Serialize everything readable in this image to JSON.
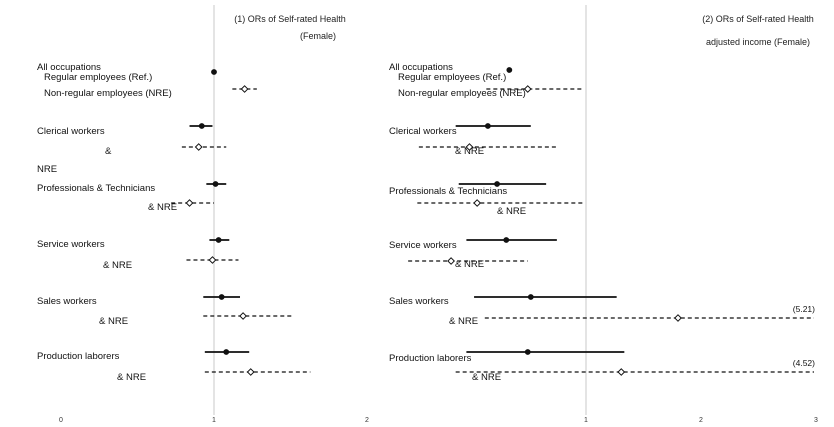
{
  "chart_data": [
    {
      "type": "forest",
      "title_lines": [
        "(1) ORs of Self-rated Health",
        "(Female)"
      ],
      "xlim": [
        0,
        2
      ],
      "x_ticks": [
        "0",
        "1",
        "2"
      ],
      "reference_line": 1,
      "labels": [
        {
          "text": "All occupations"
        },
        {
          "text": "Regular employees (Ref.)"
        },
        {
          "text": "Non-regular employees (NRE)"
        },
        {
          "text": "Clerical workers"
        },
        {
          "text": "&"
        },
        {
          "text": "NRE"
        },
        {
          "text": "Professionals & Technicians"
        },
        {
          "text": "& NRE"
        },
        {
          "text": "Service workers"
        },
        {
          "text": "& NRE"
        },
        {
          "text": "Sales workers"
        },
        {
          "text": "& NRE"
        },
        {
          "text": "Production laborers"
        },
        {
          "text": "& NRE"
        }
      ],
      "estimates": [
        {
          "label": "Regular employees (Ref.)",
          "or": 1.0,
          "ci": [
            1.0,
            1.0
          ],
          "marker": "filled"
        },
        {
          "label": "Non-regular employees (NRE)",
          "or": 1.2,
          "ci": [
            1.12,
            1.28
          ],
          "marker": "open"
        },
        {
          "label": "Clerical workers",
          "or": 0.92,
          "ci": [
            0.84,
            0.99
          ],
          "marker": "filled"
        },
        {
          "label": "Clerical workers & NRE",
          "or": 0.9,
          "ci": [
            0.79,
            1.08
          ],
          "marker": "open"
        },
        {
          "label": "Professionals & Technicians",
          "or": 1.01,
          "ci": [
            0.95,
            1.08
          ],
          "marker": "filled"
        },
        {
          "label": "Professionals & Technicians & NRE",
          "or": 0.84,
          "ci": [
            0.72,
            1.0
          ],
          "marker": "open"
        },
        {
          "label": "Service workers",
          "or": 1.03,
          "ci": [
            0.97,
            1.1
          ],
          "marker": "filled"
        },
        {
          "label": "Service workers & NRE",
          "or": 0.99,
          "ci": [
            0.82,
            1.16
          ],
          "marker": "open"
        },
        {
          "label": "Sales workers",
          "or": 1.05,
          "ci": [
            0.93,
            1.17
          ],
          "marker": "filled"
        },
        {
          "label": "Sales workers & NRE",
          "or": 1.19,
          "ci": [
            0.93,
            1.52
          ],
          "marker": "open"
        },
        {
          "label": "Production laborers",
          "or": 1.08,
          "ci": [
            0.94,
            1.23
          ],
          "marker": "filled"
        },
        {
          "label": "Production laborers & NRE",
          "or": 1.24,
          "ci": [
            0.94,
            1.63
          ],
          "marker": "open"
        }
      ]
    },
    {
      "type": "forest",
      "title_lines": [
        "(2) ORs of Self-rated Health",
        "adjusted income (Female)"
      ],
      "xlim": [
        0,
        3
      ],
      "x_ticks": [
        "1",
        "2",
        "3"
      ],
      "reference_line": 1,
      "labels": [
        {
          "text": "All occupations"
        },
        {
          "text": "Regular employees (Ref.)"
        },
        {
          "text": "Non-regular employees (NRE)"
        },
        {
          "text": "Clerical workers"
        },
        {
          "text": "& NRE"
        },
        {
          "text": "Professionals & Technicians"
        },
        {
          "text": "& NRE"
        },
        {
          "text": "Service workers"
        },
        {
          "text": "& NRE"
        },
        {
          "text": "Sales workers"
        },
        {
          "text": "& NRE"
        },
        {
          "text": "Production laborers"
        },
        {
          "text": "& NRE"
        }
      ],
      "estimates": [
        {
          "label": "Regular employees (Ref.)",
          "or": 1.0,
          "ci": [
            1.0,
            1.0
          ],
          "marker": "filled"
        },
        {
          "label": "Non-regular employees (NRE)",
          "or": 1.12,
          "ci": [
            0.85,
            1.48
          ],
          "marker": "open"
        },
        {
          "label": "Clerical workers",
          "or": 0.86,
          "ci": [
            0.65,
            1.14
          ],
          "marker": "filled"
        },
        {
          "label": "Clerical workers & NRE",
          "or": 0.74,
          "ci": [
            0.41,
            1.32
          ],
          "marker": "open"
        },
        {
          "label": "Professionals & Technicians",
          "or": 0.92,
          "ci": [
            0.67,
            1.24
          ],
          "marker": "filled"
        },
        {
          "label": "Professionals & Technicians & NRE",
          "or": 0.79,
          "ci": [
            0.4,
            1.48
          ],
          "marker": "open"
        },
        {
          "label": "Service workers",
          "or": 0.98,
          "ci": [
            0.72,
            1.31
          ],
          "marker": "filled"
        },
        {
          "label": "Service workers & NRE",
          "or": 0.62,
          "ci": [
            0.34,
            1.12
          ],
          "marker": "open"
        },
        {
          "label": "Sales workers",
          "or": 1.14,
          "ci": [
            0.77,
            1.7
          ],
          "marker": "filled"
        },
        {
          "label": "Sales workers & NRE",
          "or": 2.1,
          "ci": [
            0.84,
            5.21
          ],
          "marker": "open",
          "truncated_label": "(5.21)"
        },
        {
          "label": "Production laborers",
          "or": 1.12,
          "ci": [
            0.72,
            1.75
          ],
          "marker": "filled"
        },
        {
          "label": "Production laborers & NRE",
          "or": 1.73,
          "ci": [
            0.65,
            4.52
          ],
          "marker": "open",
          "truncated_label": "(4.52)"
        }
      ]
    }
  ]
}
